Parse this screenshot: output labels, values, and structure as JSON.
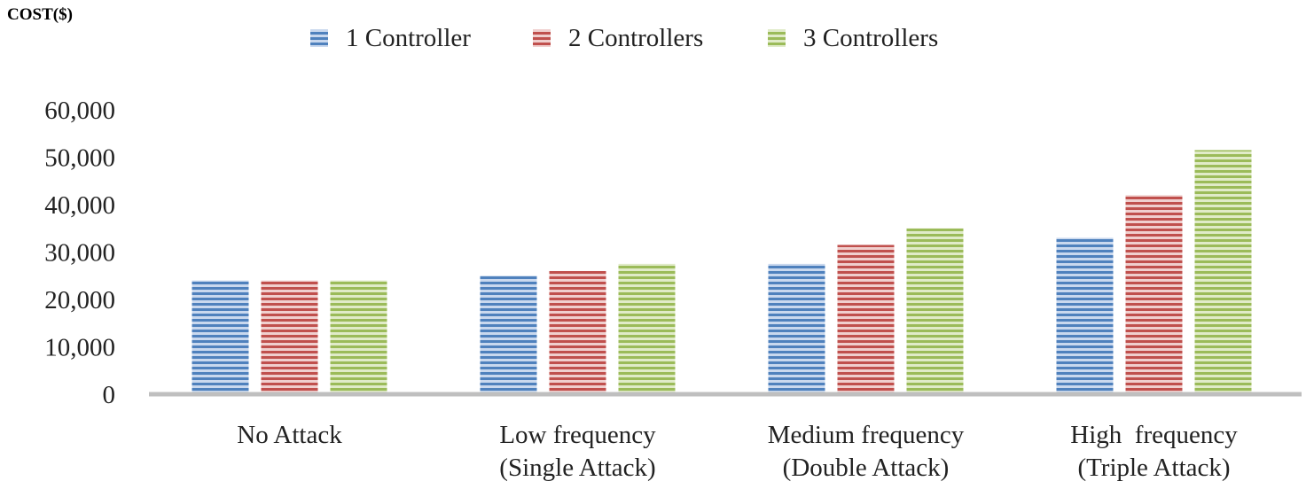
{
  "chart_data": {
    "type": "bar",
    "title": "",
    "xlabel": "",
    "ylabel": "COST($)",
    "ylim": [
      0,
      60000
    ],
    "yticks": [
      0,
      10000,
      20000,
      30000,
      40000,
      50000,
      60000
    ],
    "ytick_labels": [
      "0",
      "10,000",
      "20,000",
      "30,000",
      "40,000",
      "50,000",
      "60,000"
    ],
    "categories": [
      [
        "No Attack"
      ],
      [
        "Low frequency",
        "(Single Attack)"
      ],
      [
        "Medium frequency",
        "(Double Attack)"
      ],
      [
        "High  frequency",
        "(Triple Attack)"
      ]
    ],
    "series": [
      {
        "name": "1 Controller",
        "color": "#4f81bd",
        "values": [
          24000,
          25000,
          27500,
          33000
        ]
      },
      {
        "name": "2 Controllers",
        "color": "#c0504d",
        "values": [
          24000,
          26000,
          31500,
          42000
        ]
      },
      {
        "name": "3 Controllers",
        "color": "#9bbb59",
        "values": [
          24000,
          27500,
          35000,
          51500
        ]
      }
    ],
    "legend_position": "top",
    "grid": false
  }
}
